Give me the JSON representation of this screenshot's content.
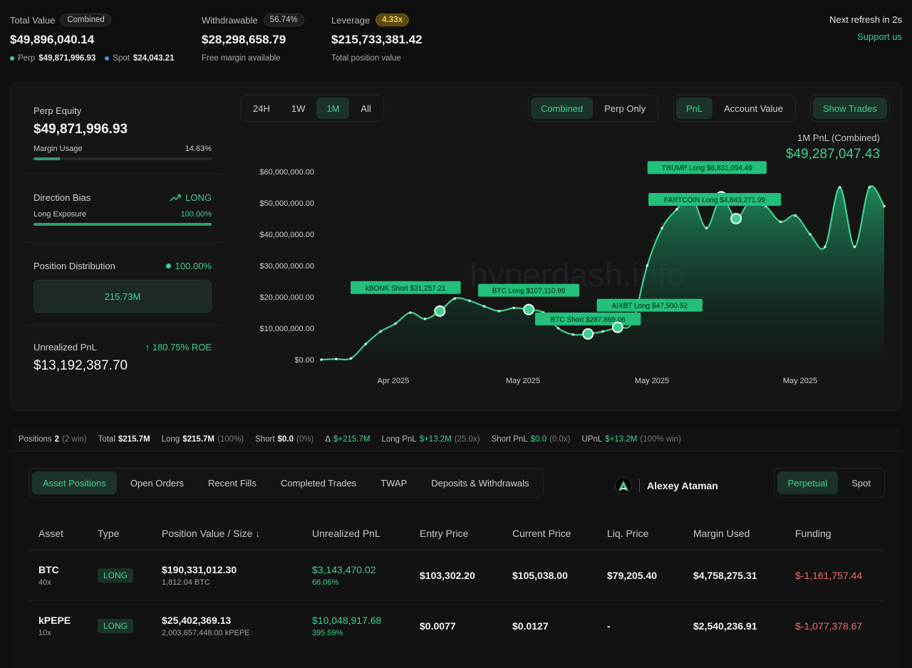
{
  "summary": {
    "total_value": {
      "label": "Total Value",
      "badge": "Combined",
      "value": "$49,896,040.14",
      "perp_label": "Perp",
      "perp_value": "$49,871,996.93",
      "spot_label": "Spot",
      "spot_value": "$24,043.21"
    },
    "withdrawable": {
      "label": "Withdrawable",
      "badge": "56.74%",
      "value": "$28,298,658.79",
      "sub": "Free margin available"
    },
    "leverage": {
      "label": "Leverage",
      "badge": "4.33x",
      "value": "$215,733,381.42",
      "sub": "Total position value"
    },
    "refresh": "Next refresh in 2s",
    "support": "Support us"
  },
  "left_panel": {
    "perp_equity_label": "Perp Equity",
    "perp_equity": "$49,871,996.93",
    "margin_usage_label": "Margin Usage",
    "margin_usage": "14.63%",
    "margin_usage_fraction": 0.1463,
    "direction_label": "Direction Bias",
    "direction": "LONG",
    "long_exposure_label": "Long Exposure",
    "long_exposure": "100.00%",
    "long_exposure_fraction": 1.0,
    "distribution_label": "Position Distribution",
    "distribution_pct": "100.00%",
    "distribution_value": "215.73M",
    "upnl_label": "Unrealized PnL",
    "upnl_roe": "180.75% ROE",
    "upnl_value": "$13,192,387.70"
  },
  "timeframes": [
    "24H",
    "1W",
    "1M",
    "All"
  ],
  "active_timeframe": "1M",
  "mode_toggle": [
    "Combined",
    "Perp Only"
  ],
  "metric_toggle": [
    "PnL",
    "Account Value"
  ],
  "show_trades": "Show Trades",
  "pnl_title": "1M PnL (Combined)",
  "pnl_value": "$49,287,047.43",
  "watermark": "hyperdash.info",
  "chart_data": {
    "type": "area",
    "ylim": [
      0,
      60000000
    ],
    "y_ticks": [
      "$0.00",
      "$10,000,000.00",
      "$20,000,000.00",
      "$30,000,000.00",
      "$40,000,000.00",
      "$50,000,000.00",
      "$60,000,000.00"
    ],
    "x_ticks": [
      "Apr 2025",
      "May 2025",
      "May 2025",
      "May 2025"
    ],
    "x_tick_pos": [
      0.0,
      0.0,
      0.0,
      0.0
    ],
    "values": [
      0,
      200000,
      400000,
      5000000,
      9000000,
      11500000,
      15000000,
      13000000,
      15500000,
      19500000,
      18800000,
      17000000,
      15500000,
      16500000,
      16000000,
      15000000,
      10000000,
      8000000,
      8200000,
      9000000,
      10300000,
      12000000,
      30000000,
      42000000,
      48000000,
      52000000,
      42000000,
      52000000,
      45000000,
      51000000,
      49000000,
      44000000,
      46000000,
      40000000,
      36000000,
      55000000,
      36000000,
      55000000,
      49000000
    ],
    "trades": [
      {
        "label": "kBONK Short $31,257.21",
        "idx": 8
      },
      {
        "label": "BTC Long $107,110.99",
        "idx": 14
      },
      {
        "label": "BTC Short $287,869.06",
        "idx": 18
      },
      {
        "label": "AIXBT Long $47,500.52",
        "idx": 20
      },
      {
        "label": "TRUMP Long $6,831,094.49",
        "idx": 27
      },
      {
        "label": "FARTCOIN Long $4,843,271.99",
        "idx": 28
      }
    ]
  },
  "strip": {
    "positions_label": "Positions",
    "positions": "2",
    "positions_win": "(2 win)",
    "total_label": "Total",
    "total": "$215.7M",
    "long_label": "Long",
    "long": "$215.7M",
    "long_pct": "(100%)",
    "short_label": "Short",
    "short": "$0.0",
    "short_pct": "(0%)",
    "delta_label": "Δ",
    "delta": "$+215.7M",
    "long_pnl_label": "Long PnL",
    "long_pnl": "$+13.2M",
    "long_pnl_x": "(25.0x)",
    "short_pnl_label": "Short PnL",
    "short_pnl": "$0.0",
    "short_pnl_x": "(0.0x)",
    "upnl_label": "UPnL",
    "upnl": "$+13.2M",
    "upnl_win": "(100% win)"
  },
  "tabs": [
    "Asset Positions",
    "Open Orders",
    "Recent Fills",
    "Completed Trades",
    "TWAP",
    "Deposits & Withdrawals"
  ],
  "user_name": "Alexey Ataman",
  "ptabs": [
    "Perpetual",
    "Spot"
  ],
  "table": {
    "headers": [
      "Asset",
      "Type",
      "Position Value / Size",
      "Unrealized PnL",
      "Entry Price",
      "Current Price",
      "Liq. Price",
      "Margin Used",
      "Funding"
    ],
    "sort_arrow": "↓",
    "rows": [
      {
        "asset": "BTC",
        "lev": "40x",
        "type": "LONG",
        "value": "$190,331,012.30",
        "size": "1,812.04 BTC",
        "upnl": "$3,143,470.02",
        "upnl_pct": "66.06%",
        "entry": "$103,302.20",
        "current": "$105,038.00",
        "liq": "$79,205.40",
        "margin": "$4,758,275.31",
        "funding": "$-1,161,757.44"
      },
      {
        "asset": "kPEPE",
        "lev": "10x",
        "type": "LONG",
        "value": "$25,402,369.13",
        "size": "2,003,657,448.00 kPEPE",
        "upnl": "$10,048,917.68",
        "upnl_pct": "395.59%",
        "entry": "$0.0077",
        "current": "$0.0127",
        "liq": "-",
        "margin": "$2,540,236.91",
        "funding": "$-1,077,378.67"
      }
    ]
  }
}
